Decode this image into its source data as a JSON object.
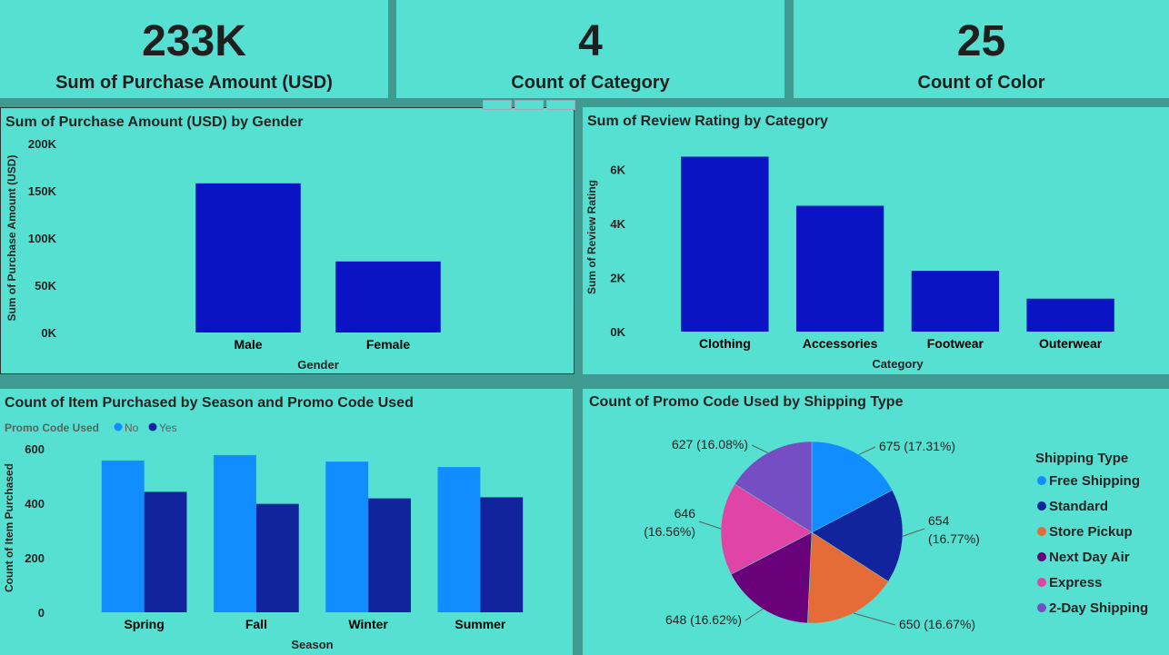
{
  "cards": [
    {
      "value": "233K",
      "label": "Sum of Purchase Amount (USD)"
    },
    {
      "value": "4",
      "label": "Count of Category"
    },
    {
      "value": "25",
      "label": "Count of Color"
    }
  ],
  "colors": {
    "background": "#3f9a92",
    "panel": "#55e0d1",
    "bar_primary": "#0a14c4",
    "no": "#118dff",
    "yes": "#12239e"
  },
  "chart_data": [
    {
      "type": "bar",
      "title": "Sum of Purchase Amount (USD) by Gender",
      "xlabel": "Gender",
      "ylabel": "Sum of Purchase Amount (USD)",
      "categories": [
        "Male",
        "Female"
      ],
      "values": [
        157890,
        75191
      ],
      "ylim": [
        0,
        200000
      ],
      "yticks": [
        "0K",
        "50K",
        "100K",
        "150K",
        "200K"
      ]
    },
    {
      "type": "bar",
      "title": "Sum of Review Rating by Category",
      "xlabel": "Category",
      "ylabel": "Sum of Review Rating",
      "categories": [
        "Clothing",
        "Accessories",
        "Footwear",
        "Outerwear"
      ],
      "values": [
        6480,
        4660,
        2250,
        1220
      ],
      "ylim": [
        0,
        7000
      ],
      "yticks": [
        "0K",
        "2K",
        "4K",
        "6K"
      ]
    },
    {
      "type": "bar",
      "title": "Count of Item Purchased by Season and Promo Code Used",
      "xlabel": "Season",
      "ylabel": "Count of Item Purchased",
      "legend_title": "Promo Code Used",
      "categories": [
        "Spring",
        "Fall",
        "Winter",
        "Summer"
      ],
      "series": [
        {
          "name": "No",
          "values": [
            557,
            577,
            553,
            533
          ]
        },
        {
          "name": "Yes",
          "values": [
            442,
            398,
            418,
            422
          ]
        }
      ],
      "ylim": [
        0,
        620
      ],
      "yticks": [
        "0",
        "200",
        "400",
        "600"
      ]
    },
    {
      "type": "pie",
      "title": "Count of Promo Code Used by Shipping Type",
      "legend_title": "Shipping Type",
      "slices": [
        {
          "label": "Free Shipping",
          "value": 675,
          "text": "675 (17.31%)",
          "color": "#118dff"
        },
        {
          "label": "Standard",
          "value": 654,
          "text": "654 (16.77%)",
          "color": "#12239e"
        },
        {
          "label": "Store Pickup",
          "value": 650,
          "text": "650 (16.67%)",
          "color": "#e66c37"
        },
        {
          "label": "Next Day Air",
          "value": 648,
          "text": "648 (16.62%)",
          "color": "#6b007b"
        },
        {
          "label": "Express",
          "value": 646,
          "text": "646 (16.56%)",
          "color": "#e044a7"
        },
        {
          "label": "2-Day Shipping",
          "value": 627,
          "text": "627 (16.08%)",
          "color": "#744ec2"
        }
      ]
    }
  ]
}
